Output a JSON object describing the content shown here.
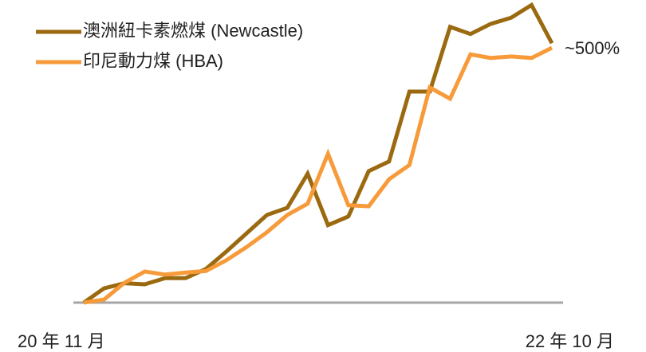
{
  "chart_data": {
    "type": "line",
    "categories": [
      "20 年 11 月",
      null,
      null,
      null,
      null,
      null,
      null,
      null,
      null,
      null,
      null,
      null,
      null,
      null,
      null,
      null,
      null,
      null,
      null,
      null,
      null,
      null,
      null,
      "22 年 10 月"
    ],
    "series": [
      {
        "name": "澳洲紐卡素燃煤 (Newcastle)",
        "color": "#9b6a10",
        "values": [
          0,
          28,
          38,
          36,
          48,
          48,
          66,
          100,
          136,
          172,
          186,
          253,
          152,
          169,
          258,
          277,
          414,
          414,
          541,
          527,
          547,
          559,
          584,
          509
        ]
      },
      {
        "name": "印尼動力煤 (HBA)",
        "color": "#f79a3a",
        "values": [
          0,
          6,
          39,
          61,
          55,
          59,
          62,
          83,
          109,
          138,
          172,
          194,
          292,
          191,
          189,
          242,
          270,
          422,
          400,
          487,
          480,
          483,
          480,
          500
        ]
      }
    ],
    "annotations": [
      "~500%"
    ],
    "ylim": [
      0,
      600
    ],
    "legend": "upper left"
  }
}
